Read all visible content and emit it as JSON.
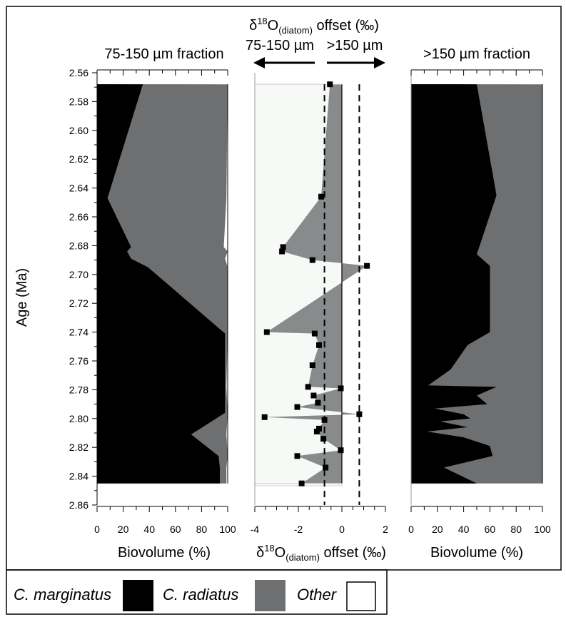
{
  "labels": {
    "left_title": "75-150 µm fraction",
    "right_title": ">150 µm fraction",
    "middle_title_prefix": "δ",
    "middle_title_sup": "18",
    "middle_title_O": "O",
    "middle_title_sub": "(diatom)",
    "middle_title_suffix": " offset (‰)",
    "middle_arrow_left": "75-150 µm",
    "middle_arrow_right": ">150 µm",
    "y_axis_label": "Age (Ma)",
    "x_left": "Biovolume (%)",
    "x_right": "Biovolume (%)",
    "x_mid_prefix": "δ",
    "x_mid_sup": "18",
    "x_mid_O": "O",
    "x_mid_sub": "(diatom)",
    "x_mid_suffix": " offset (‰)"
  },
  "legend": {
    "items": [
      {
        "label": "C. marginatus",
        "color": "#000000"
      },
      {
        "label": "C. radiatus",
        "color": "#6d6f71"
      },
      {
        "label": "Other",
        "color": "#ffffff"
      }
    ]
  },
  "colors": {
    "marginatus": "#000000",
    "radiatus": "#6d6f71",
    "other": "#ffffff",
    "offset_fill": "#888a8c"
  },
  "chart_data": [
    {
      "type": "area",
      "title": "75-150 µm fraction",
      "xlabel": "Biovolume (%)",
      "ylabel": "Age (Ma)",
      "xlim": [
        0,
        100
      ],
      "ylim": [
        2.86,
        2.56
      ],
      "x_ticks": [
        "0",
        "20",
        "40",
        "60",
        "80",
        "100"
      ],
      "y_ticks": [
        "2.56",
        "2.58",
        "2.60",
        "2.62",
        "2.64",
        "2.66",
        "2.68",
        "2.70",
        "2.72",
        "2.74",
        "2.76",
        "2.78",
        "2.80",
        "2.82",
        "2.84",
        "2.86"
      ],
      "age": [
        2.568,
        2.647,
        2.681,
        2.684,
        2.689,
        2.695,
        2.741,
        2.778,
        2.796,
        2.811,
        2.826,
        2.834,
        2.845
      ],
      "series": [
        {
          "name": "C. marginatus",
          "cumulative": [
            35,
            8,
            26,
            23,
            26,
            39,
            98,
            98,
            98,
            72,
            93,
            94,
            94
          ]
        },
        {
          "name": "C. radiatus",
          "cumulative": [
            100,
            99,
            97,
            100,
            98,
            100,
            100,
            99,
            100,
            99,
            100,
            99,
            99
          ]
        }
      ]
    },
    {
      "type": "line",
      "title": "δ18O(diatom) offset (‰)",
      "xlabel": "δ18O(diatom) offset (‰)",
      "xlim": [
        -4,
        2
      ],
      "x_ticks": [
        "-4",
        "-2",
        "0",
        "2"
      ],
      "reference_lines": [
        -0.8,
        0.8
      ],
      "age": [
        2.568,
        2.646,
        2.681,
        2.684,
        2.69,
        2.694,
        2.74,
        2.741,
        2.749,
        2.763,
        2.778,
        2.779,
        2.784,
        2.789,
        2.792,
        2.797,
        2.799,
        2.801,
        2.807,
        2.809,
        2.814,
        2.822,
        2.826,
        2.834,
        2.845
      ],
      "values": [
        -0.55,
        -0.95,
        -2.7,
        -2.75,
        -1.35,
        1.15,
        -3.45,
        -1.25,
        -1.05,
        -1.35,
        -1.55,
        -0.05,
        -1.3,
        -1.1,
        -2.05,
        0.8,
        -3.55,
        -0.8,
        -1.05,
        -1.15,
        -0.85,
        -0.05,
        -2.05,
        -0.75,
        -1.85
      ]
    },
    {
      "type": "area",
      "title": ">150 µm fraction",
      "xlabel": "Biovolume (%)",
      "xlim": [
        0,
        100
      ],
      "x_ticks": [
        "0",
        "20",
        "40",
        "60",
        "80",
        "100"
      ],
      "age": [
        2.568,
        2.645,
        2.686,
        2.694,
        2.74,
        2.749,
        2.766,
        2.777,
        2.778,
        2.784,
        2.79,
        2.793,
        2.797,
        2.8,
        2.802,
        2.806,
        2.809,
        2.813,
        2.819,
        2.826,
        2.834,
        2.845
      ],
      "series": [
        {
          "name": "C. marginatus",
          "cumulative": [
            50,
            65,
            50,
            60,
            60,
            43,
            30,
            13,
            65,
            50,
            58,
            18,
            40,
            45,
            22,
            43,
            12,
            40,
            60,
            62,
            25,
            50
          ]
        },
        {
          "name": "C. radiatus",
          "cumulative": [
            100,
            100,
            100,
            100,
            100,
            100,
            100,
            100,
            100,
            100,
            100,
            100,
            100,
            100,
            100,
            100,
            100,
            100,
            100,
            100,
            100,
            100
          ]
        }
      ]
    }
  ]
}
